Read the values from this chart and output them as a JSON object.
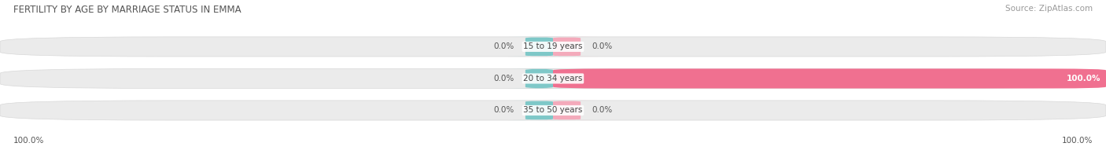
{
  "title": "FERTILITY BY AGE BY MARRIAGE STATUS IN EMMA",
  "source": "Source: ZipAtlas.com",
  "categories": [
    "15 to 19 years",
    "20 to 34 years",
    "35 to 50 years"
  ],
  "married_vals": [
    0.0,
    0.0,
    0.0
  ],
  "unmarried_vals": [
    0.0,
    100.0,
    0.0
  ],
  "married_color": "#7ec8c8",
  "unmarried_color": "#f07090",
  "unmarried_small_color": "#f4aabb",
  "bar_bg_color": "#ebebeb",
  "bar_bg_border": "#d8d8d8",
  "figsize": [
    14.06,
    1.96
  ],
  "title_fontsize": 8.5,
  "source_fontsize": 7.5,
  "label_fontsize": 7.5,
  "cat_fontsize": 7.5,
  "legend_fontsize": 7.5,
  "bottom_left_label": "100.0%",
  "bottom_right_label": "100.0%"
}
